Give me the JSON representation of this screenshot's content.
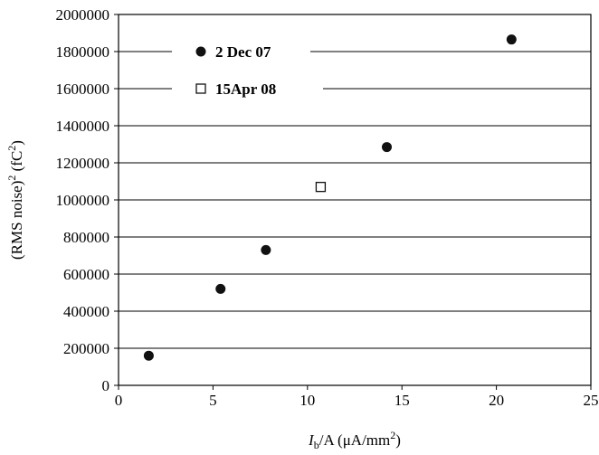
{
  "chart_data": {
    "type": "scatter",
    "title": "",
    "xlabel": {
      "main": "I",
      "sub": "b",
      "mid": "/A (μA/mm",
      "sup": "2",
      "end": ")"
    },
    "ylabel": {
      "main": "(RMS noise)",
      "sup1": "2",
      "mid": " (fC",
      "sup2": "2",
      "end": ")"
    },
    "xlim": [
      0,
      25
    ],
    "ylim": [
      0,
      2000000
    ],
    "x_ticks": [
      "0",
      "5",
      "10",
      "15",
      "20",
      "25"
    ],
    "y_ticks": [
      "0",
      "200000",
      "400000",
      "600000",
      "800000",
      "1000000",
      "1200000",
      "1400000",
      "1600000",
      "1800000",
      "2000000"
    ],
    "grid": "horizontal",
    "legend_position": "top-left",
    "series": [
      {
        "name": "2 Dec 07",
        "marker": "filled-circle",
        "color": "#111111",
        "points": [
          {
            "x": 1.6,
            "y": 160000
          },
          {
            "x": 5.4,
            "y": 520000
          },
          {
            "x": 7.8,
            "y": 730000
          },
          {
            "x": 14.2,
            "y": 1285000
          },
          {
            "x": 20.8,
            "y": 1865000
          }
        ]
      },
      {
        "name": "15Apr 08",
        "marker": "open-square",
        "color": "#111111",
        "points": [
          {
            "x": 10.7,
            "y": 1070000
          }
        ]
      }
    ]
  }
}
